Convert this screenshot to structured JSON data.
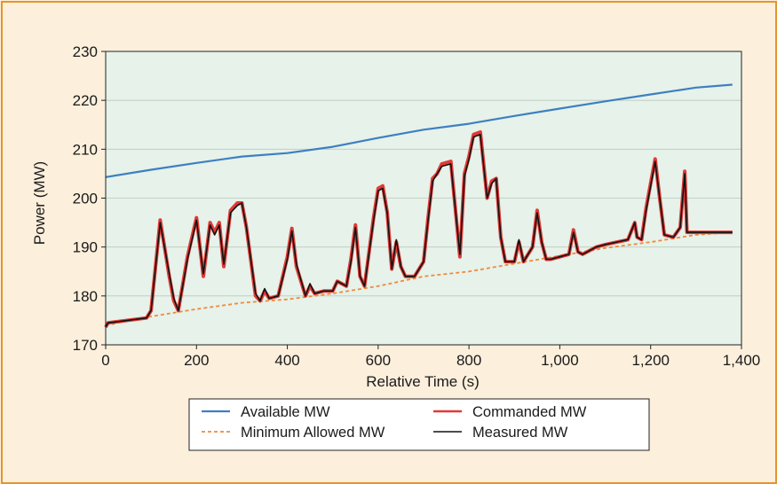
{
  "chart_data": {
    "type": "line",
    "title": "",
    "xlabel": "Relative Time (s)",
    "ylabel": "Power (MW)",
    "xlim": [
      0,
      1400
    ],
    "ylim": [
      170,
      230
    ],
    "x_ticks": [
      0,
      200,
      400,
      600,
      800,
      1000,
      1200,
      1400
    ],
    "x_tick_labels": [
      "0",
      "200",
      "400",
      "600",
      "800",
      "1,000",
      "1,200",
      "1,400"
    ],
    "y_ticks": [
      170,
      180,
      190,
      200,
      210,
      220,
      230
    ],
    "y_tick_labels": [
      "170",
      "180",
      "190",
      "200",
      "210",
      "220",
      "230"
    ],
    "grid": "horizontal",
    "legend_position": "bottom-center",
    "legend_columns": [
      [
        "Available MW",
        "Minimum Allowed MW"
      ],
      [
        "Commanded MW",
        "Measured MW"
      ]
    ],
    "colors": {
      "plot_background": "#e6f2ea",
      "page_background": "#fcefdc",
      "frame_border": "#e3962d"
    },
    "series": [
      {
        "name": "Available MW",
        "color": "#3e7fc1",
        "style": "solid",
        "x": [
          0,
          100,
          200,
          300,
          400,
          500,
          600,
          700,
          800,
          900,
          1000,
          1100,
          1200,
          1300,
          1380
        ],
        "y": [
          204.3,
          205.8,
          207.2,
          208.5,
          209.2,
          210.5,
          212.3,
          214.0,
          215.2,
          216.8,
          218.3,
          219.8,
          221.2,
          222.6,
          223.2
        ]
      },
      {
        "name": "Minimum Allowed MW",
        "color": "#ef8a3c",
        "style": "dashed",
        "x": [
          0,
          100,
          200,
          300,
          400,
          500,
          600,
          700,
          800,
          900,
          1000,
          1100,
          1200,
          1300,
          1380
        ],
        "y": [
          174.0,
          175.8,
          177.3,
          178.6,
          179.3,
          180.5,
          182.0,
          184.0,
          185.0,
          186.6,
          188.2,
          189.8,
          191.0,
          192.5,
          193.0
        ]
      },
      {
        "name": "Commanded MW",
        "color": "#e03a36",
        "style": "solid",
        "x": [
          0,
          5,
          90,
          100,
          120,
          140,
          150,
          160,
          180,
          200,
          215,
          230,
          240,
          250,
          260,
          275,
          290,
          300,
          310,
          330,
          340,
          350,
          360,
          380,
          400,
          410,
          420,
          440,
          450,
          460,
          480,
          500,
          510,
          530,
          540,
          550,
          560,
          570,
          590,
          600,
          610,
          620,
          630,
          640,
          650,
          660,
          680,
          700,
          710,
          720,
          730,
          740,
          760,
          780,
          790,
          800,
          810,
          825,
          840,
          850,
          860,
          870,
          880,
          900,
          910,
          920,
          940,
          950,
          960,
          970,
          980,
          1000,
          1020,
          1030,
          1040,
          1050,
          1060,
          1080,
          1100,
          1150,
          1165,
          1170,
          1180,
          1190,
          1200,
          1210,
          1220,
          1230,
          1250,
          1265,
          1275,
          1280,
          1290,
          1300,
          1340,
          1380
        ],
        "y": [
          173.6,
          174.5,
          175.5,
          177.0,
          195.5,
          184.0,
          179.0,
          177.0,
          188.0,
          196.0,
          184.0,
          195.0,
          193.0,
          195.0,
          186.0,
          197.5,
          199.0,
          199.0,
          194.0,
          180.0,
          179.0,
          181.0,
          179.5,
          180.0,
          188.0,
          193.8,
          186.0,
          180.0,
          182.0,
          180.5,
          181.0,
          181.0,
          183.0,
          182.0,
          187.5,
          194.5,
          184.0,
          182.0,
          196.0,
          202.0,
          202.5,
          197.0,
          185.5,
          191.0,
          186.0,
          184.0,
          184.0,
          187.0,
          196.0,
          204.0,
          205.0,
          207.0,
          207.5,
          188.0,
          205.0,
          208.5,
          213.0,
          213.5,
          200.0,
          203.5,
          204.0,
          192.0,
          187.0,
          187.0,
          191.0,
          187.0,
          190.0,
          197.5,
          191.0,
          187.5,
          187.5,
          188.0,
          188.5,
          193.5,
          189.0,
          188.5,
          189.0,
          190.0,
          190.5,
          191.5,
          195.0,
          192.0,
          191.5,
          198.0,
          203.0,
          208.0,
          200.0,
          192.5,
          192.0,
          194.0,
          205.5,
          193.0,
          193.0,
          193.0,
          193.0,
          193.0
        ]
      },
      {
        "name": "Measured MW",
        "color": "#111111",
        "style": "solid",
        "x": [
          0,
          5,
          90,
          100,
          120,
          140,
          150,
          160,
          180,
          200,
          215,
          230,
          240,
          250,
          260,
          275,
          290,
          300,
          310,
          330,
          340,
          350,
          360,
          380,
          400,
          410,
          420,
          440,
          450,
          460,
          480,
          500,
          510,
          530,
          540,
          550,
          560,
          570,
          590,
          600,
          610,
          620,
          630,
          640,
          650,
          660,
          680,
          700,
          710,
          720,
          730,
          740,
          760,
          780,
          790,
          800,
          810,
          825,
          840,
          850,
          860,
          870,
          880,
          900,
          910,
          920,
          940,
          950,
          960,
          970,
          980,
          1000,
          1020,
          1030,
          1040,
          1050,
          1060,
          1080,
          1100,
          1150,
          1165,
          1170,
          1180,
          1190,
          1200,
          1210,
          1220,
          1230,
          1250,
          1265,
          1275,
          1280,
          1290,
          1300,
          1340,
          1380
        ],
        "y": [
          173.6,
          174.5,
          175.5,
          177.0,
          195.0,
          184.5,
          179.5,
          177.0,
          187.5,
          195.5,
          184.5,
          194.5,
          192.5,
          194.5,
          186.5,
          197.0,
          198.5,
          199.0,
          194.0,
          180.5,
          179.0,
          181.5,
          179.5,
          180.0,
          187.5,
          193.3,
          186.5,
          180.0,
          182.5,
          180.5,
          181.0,
          181.0,
          183.0,
          182.0,
          187.0,
          194.0,
          184.0,
          182.0,
          195.5,
          201.5,
          202.0,
          197.0,
          185.5,
          191.5,
          186.0,
          184.0,
          184.0,
          187.0,
          195.5,
          203.5,
          205.0,
          206.5,
          207.0,
          188.5,
          204.5,
          208.0,
          212.5,
          213.0,
          200.0,
          203.0,
          204.0,
          192.0,
          187.0,
          187.0,
          191.5,
          187.0,
          190.0,
          197.0,
          191.0,
          187.5,
          187.5,
          188.0,
          188.5,
          193.0,
          189.0,
          188.5,
          189.0,
          190.0,
          190.5,
          191.5,
          195.0,
          192.0,
          191.5,
          197.5,
          202.5,
          207.5,
          200.0,
          192.5,
          192.0,
          194.0,
          205.0,
          193.0,
          193.0,
          193.0,
          193.0,
          193.0
        ]
      }
    ]
  }
}
